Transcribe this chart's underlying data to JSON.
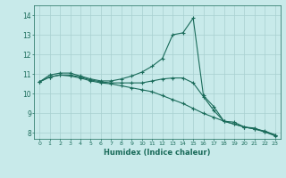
{
  "xlabel": "Humidex (Indice chaleur)",
  "bg_color": "#c8eaea",
  "grid_color": "#a8d0d0",
  "line_color": "#1a6b5a",
  "xlim": [
    -0.5,
    23.5
  ],
  "ylim": [
    7.7,
    14.5
  ],
  "xticks": [
    0,
    1,
    2,
    3,
    4,
    5,
    6,
    7,
    8,
    9,
    10,
    11,
    12,
    13,
    14,
    15,
    16,
    17,
    18,
    19,
    20,
    21,
    22,
    23
  ],
  "yticks": [
    8,
    9,
    10,
    11,
    12,
    13,
    14
  ],
  "series": [
    [
      10.6,
      10.95,
      11.05,
      11.05,
      10.9,
      10.75,
      10.65,
      10.65,
      10.75,
      10.9,
      11.1,
      11.4,
      11.8,
      13.0,
      13.1,
      13.85,
      9.9,
      9.35,
      8.6,
      8.55,
      8.3,
      8.25,
      8.05,
      7.85
    ],
    [
      10.6,
      10.85,
      10.95,
      10.95,
      10.85,
      10.7,
      10.6,
      10.55,
      10.55,
      10.55,
      10.55,
      10.65,
      10.75,
      10.8,
      10.8,
      10.55,
      9.85,
      9.15,
      8.6,
      8.45,
      8.3,
      8.2,
      8.1,
      7.9
    ],
    [
      10.6,
      10.85,
      10.95,
      10.9,
      10.8,
      10.65,
      10.55,
      10.5,
      10.4,
      10.3,
      10.2,
      10.1,
      9.9,
      9.7,
      9.5,
      9.25,
      9.0,
      8.8,
      8.6,
      8.45,
      8.3,
      8.2,
      8.05,
      7.9
    ]
  ]
}
